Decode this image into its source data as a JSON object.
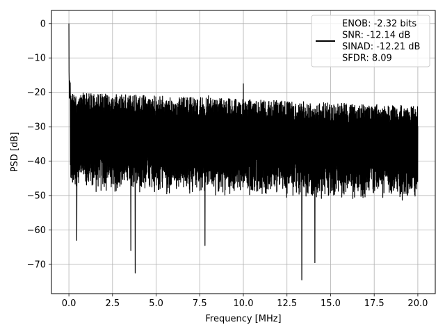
{
  "chart_data": {
    "type": "line",
    "title": "",
    "xlabel": "Frequency [MHz]",
    "ylabel": "PSD [dB]",
    "xlim": [
      -1.0,
      21.0
    ],
    "ylim": [
      -78.5,
      3.8
    ],
    "xticks": [
      0.0,
      2.5,
      5.0,
      7.5,
      10.0,
      12.5,
      15.0,
      17.5,
      20.0
    ],
    "xtick_labels": [
      "0.0",
      "2.5",
      "5.0",
      "7.5",
      "10.0",
      "12.5",
      "15.0",
      "17.5",
      "20.0"
    ],
    "yticks": [
      0,
      -10,
      -20,
      -30,
      -40,
      -50,
      -60,
      -70
    ],
    "ytick_labels": [
      "0",
      "−10",
      "−20",
      "−30",
      "−40",
      "−50",
      "−60",
      "−70"
    ],
    "grid": true,
    "legend": {
      "position": "top-right",
      "entries": [
        "ENOB: -2.32 bits",
        "SNR: -12.14 dB",
        "SINAD: -12.21 dB",
        "SFDR: 8.09"
      ]
    },
    "series": [
      {
        "color": "#000000",
        "x_range": [
          0.0,
          20.0
        ],
        "peak": {
          "x": 0.0,
          "y": 0
        },
        "noise_band": {
          "upper": [
            -20,
            -24
          ],
          "lower": [
            -44,
            -47
          ]
        },
        "spurs": [
          {
            "x": 10.0,
            "y": -17.5
          },
          {
            "x": 0.45,
            "y": -63
          },
          {
            "x": 3.55,
            "y": -66
          },
          {
            "x": 3.8,
            "y": -72.5
          },
          {
            "x": 13.35,
            "y": -74.5
          },
          {
            "x": 14.1,
            "y": -69.5
          },
          {
            "x": 7.8,
            "y": -64.5
          },
          {
            "x": 8.0,
            "y": -21
          }
        ]
      }
    ]
  }
}
